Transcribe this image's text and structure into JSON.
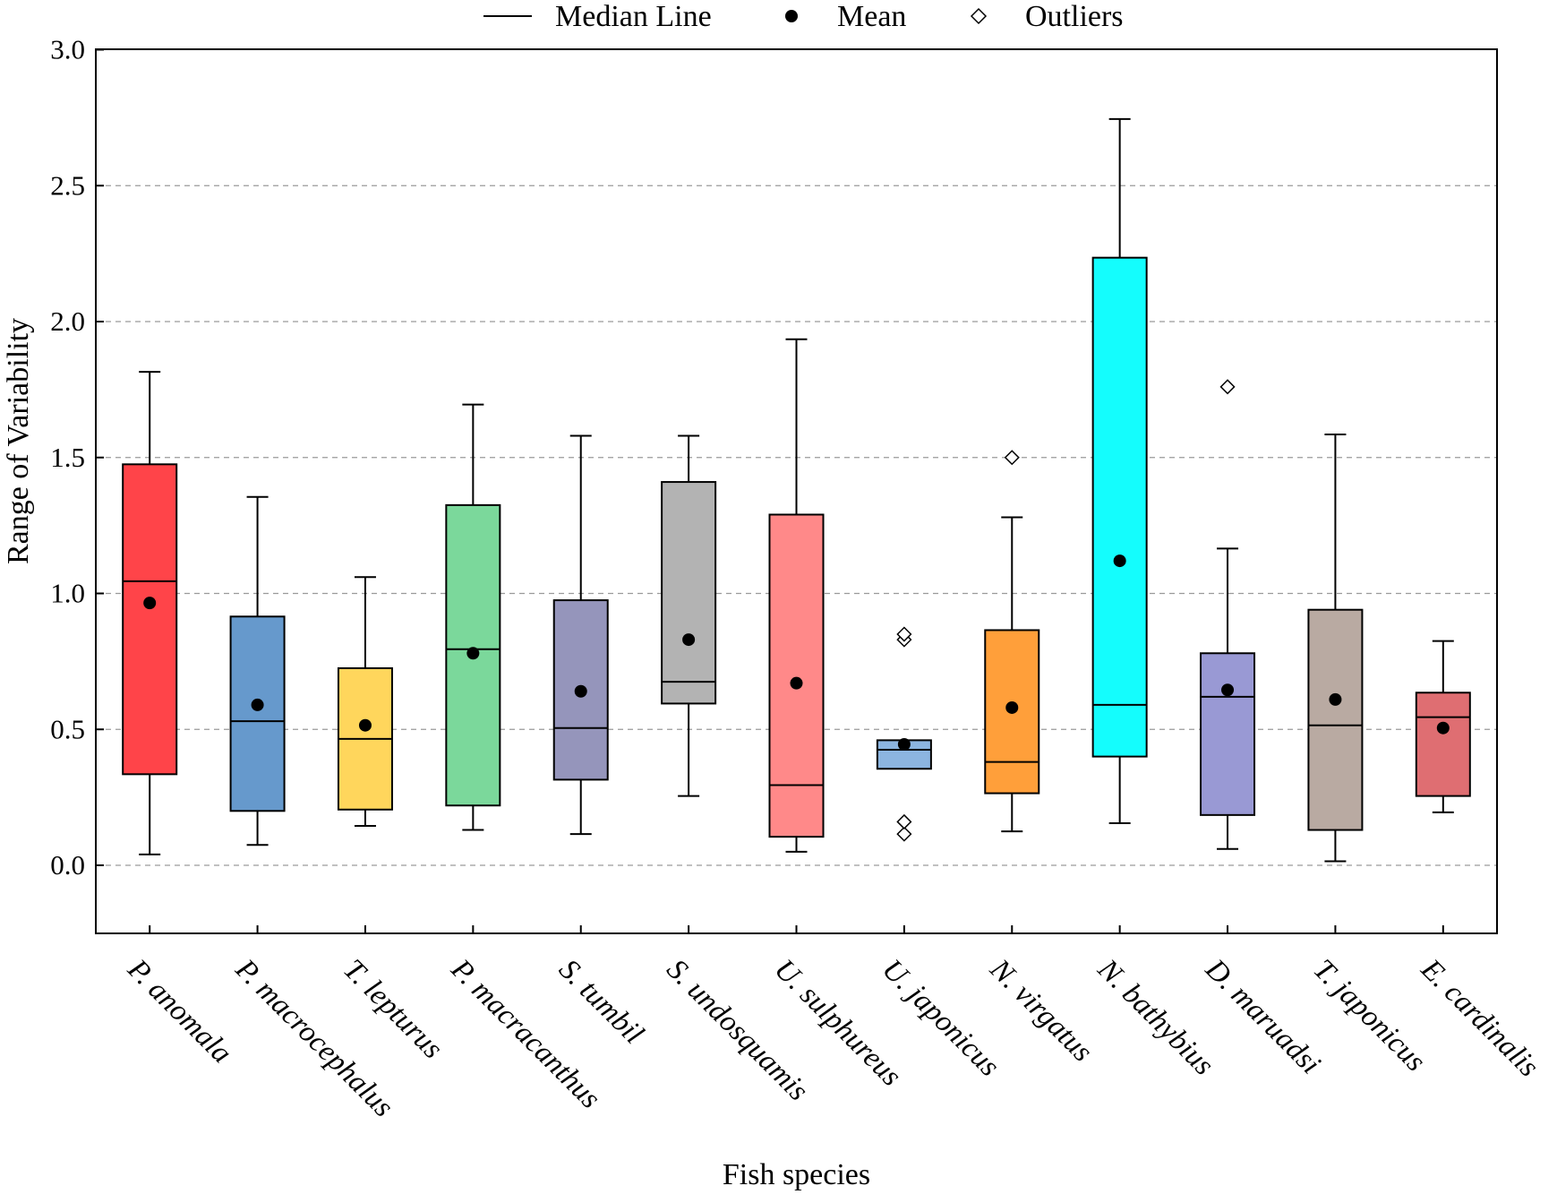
{
  "chart_data": {
    "type": "box",
    "title": "",
    "xlabel": "Fish species",
    "ylabel": "Range of Variability",
    "ylim": [
      -0.25,
      3.0
    ],
    "yticks": [
      "0.0",
      "0.5",
      "1.0",
      "1.5",
      "2.0",
      "2.5",
      "3.0"
    ],
    "gridlines": "dashed horizontal at y ticks",
    "legend": {
      "position": "top",
      "items": [
        {
          "label": "Median Line",
          "marker": "line"
        },
        {
          "label": "Mean",
          "marker": "filled-circle"
        },
        {
          "label": "Outliers",
          "marker": "open-diamond"
        }
      ]
    },
    "categories": [
      "P. anomala",
      "P. macrocephalus",
      "T. lepturus",
      "P. macracanthus",
      "S. tumbil",
      "S. undosquamis",
      "U. sulphureus",
      "U. japonicus",
      "N. virgatus",
      "N. bathybius",
      "D. maruadsi",
      "T. japonicus",
      "E. cardinalis"
    ],
    "boxes": [
      {
        "name": "P. anomala",
        "color": "#ff4449",
        "whisker_low": 0.04,
        "q1": 0.335,
        "median": 1.045,
        "q3": 1.475,
        "whisker_high": 1.815,
        "mean": 0.965,
        "outliers": []
      },
      {
        "name": "P. macrocephalus",
        "color": "#6699cc",
        "whisker_low": 0.075,
        "q1": 0.2,
        "median": 0.53,
        "q3": 0.915,
        "whisker_high": 1.355,
        "mean": 0.59,
        "outliers": []
      },
      {
        "name": "T. lepturus",
        "color": "#ffd65c",
        "whisker_low": 0.145,
        "q1": 0.205,
        "median": 0.465,
        "q3": 0.725,
        "whisker_high": 1.06,
        "mean": 0.515,
        "outliers": []
      },
      {
        "name": "P. macracanthus",
        "color": "#7bd89b",
        "whisker_low": 0.13,
        "q1": 0.22,
        "median": 0.795,
        "q3": 1.325,
        "whisker_high": 1.695,
        "mean": 0.78,
        "outliers": []
      },
      {
        "name": "S. tumbil",
        "color": "#9595bb",
        "whisker_low": 0.115,
        "q1": 0.315,
        "median": 0.505,
        "q3": 0.975,
        "whisker_high": 1.58,
        "mean": 0.64,
        "outliers": []
      },
      {
        "name": "S. undosquamis",
        "color": "#b3b3b3",
        "whisker_low": 0.255,
        "q1": 0.595,
        "median": 0.675,
        "q3": 1.41,
        "whisker_high": 1.58,
        "mean": 0.83,
        "outliers": []
      },
      {
        "name": "U. sulphureus",
        "color": "#ff8989",
        "whisker_low": 0.05,
        "q1": 0.105,
        "median": 0.295,
        "q3": 1.29,
        "whisker_high": 1.935,
        "mean": 0.67,
        "outliers": []
      },
      {
        "name": "U. japonicus",
        "color": "#8cb5e0",
        "whisker_low": 0.355,
        "q1": 0.355,
        "median": 0.425,
        "q3": 0.46,
        "whisker_high": 0.46,
        "mean": 0.445,
        "outliers": [
          0.115,
          0.16,
          0.83,
          0.85
        ]
      },
      {
        "name": "N. virgatus",
        "color": "#ff9f3a",
        "whisker_low": 0.125,
        "q1": 0.265,
        "median": 0.38,
        "q3": 0.865,
        "whisker_high": 1.28,
        "mean": 0.58,
        "outliers": [
          1.5
        ]
      },
      {
        "name": "N. bathybius",
        "color": "#14fdfd",
        "whisker_low": 0.155,
        "q1": 0.4,
        "median": 0.59,
        "q3": 2.235,
        "whisker_high": 2.745,
        "mean": 1.12,
        "outliers": []
      },
      {
        "name": "D. maruadsi",
        "color": "#9999d4",
        "whisker_low": 0.06,
        "q1": 0.185,
        "median": 0.62,
        "q3": 0.78,
        "whisker_high": 1.165,
        "mean": 0.645,
        "outliers": [
          1.76
        ]
      },
      {
        "name": "T. japonicus",
        "color": "#b9aaa2",
        "whisker_low": 0.015,
        "q1": 0.13,
        "median": 0.515,
        "q3": 0.94,
        "whisker_high": 1.585,
        "mean": 0.61,
        "outliers": []
      },
      {
        "name": "E. cardinalis",
        "color": "#df6e72",
        "whisker_low": 0.195,
        "q1": 0.255,
        "median": 0.545,
        "q3": 0.635,
        "whisker_high": 0.825,
        "mean": 0.505,
        "outliers": []
      }
    ]
  }
}
